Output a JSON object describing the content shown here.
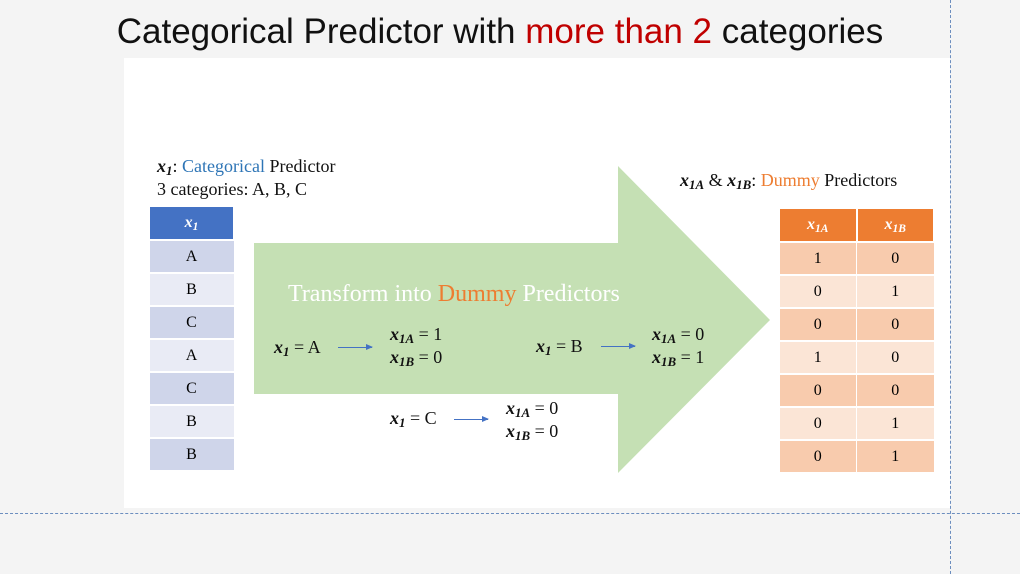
{
  "title": {
    "part1": "Categorical Predictor with ",
    "highlight": "more than 2",
    "part2": " categories"
  },
  "left_label": {
    "var": "x",
    "sub": "1",
    "colon": ": ",
    "categorical": "Categorical",
    "predictor": " Predictor",
    "categories_line": "3 categories: A, B, C"
  },
  "right_label": {
    "var1": "x",
    "sub1": "1A",
    "amp": " & ",
    "var2": "x",
    "sub2": "1B",
    "colon": ": ",
    "dummy": "Dummy",
    "predictors": " Predictors"
  },
  "x1_table": {
    "header_var": "x",
    "header_sub": "1",
    "values": [
      "A",
      "B",
      "C",
      "A",
      "C",
      "B",
      "B"
    ]
  },
  "dummy_table": {
    "h1_var": "x",
    "h1_sub": "1A",
    "h2_var": "x",
    "h2_sub": "1B",
    "rows": [
      [
        "1",
        "0"
      ],
      [
        "0",
        "1"
      ],
      [
        "0",
        "0"
      ],
      [
        "1",
        "0"
      ],
      [
        "0",
        "0"
      ],
      [
        "0",
        "1"
      ],
      [
        "0",
        "1"
      ]
    ]
  },
  "transform": {
    "text1": "Transform into ",
    "dummy": "Dummy",
    "text2": " Predictors"
  },
  "mappings": {
    "a": {
      "lhs_var": "x",
      "lhs_sub": "1",
      "lhs_val": " = A",
      "r1_var": "x",
      "r1_sub": "1A",
      "r1_val": " = 1",
      "r2_var": "x",
      "r2_sub": "1B",
      "r2_val": " = 0"
    },
    "b": {
      "lhs_var": "x",
      "lhs_sub": "1",
      "lhs_val": " = B",
      "r1_var": "x",
      "r1_sub": "1A",
      "r1_val": " = 0",
      "r2_var": "x",
      "r2_sub": "1B",
      "r2_val": " = 1"
    },
    "c": {
      "lhs_var": "x",
      "lhs_sub": "1",
      "lhs_val": " = C",
      "r1_var": "x",
      "r1_sub": "1A",
      "r1_val": " = 0",
      "r2_var": "x",
      "r2_sub": "1B",
      "r2_val": " = 0"
    }
  },
  "colors": {
    "arrow_fill": "#c5e0b4",
    "x1_header": "#4472c4",
    "dummy_header": "#ed7d31",
    "highlight": "#c00000"
  }
}
